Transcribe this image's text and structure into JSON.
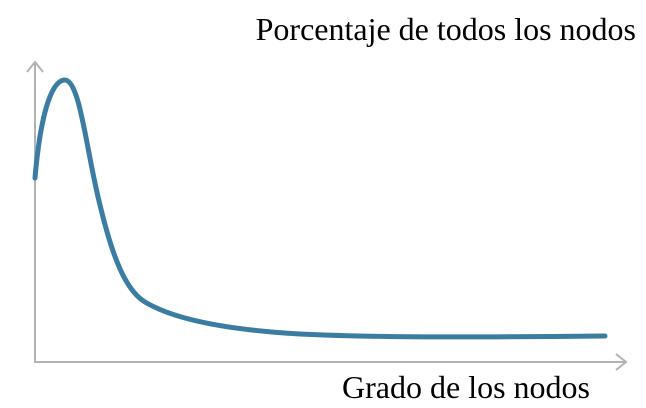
{
  "y_axis_label": "Porcentaje de todos los nodos",
  "x_axis_label": "Grado de los nodos"
}
